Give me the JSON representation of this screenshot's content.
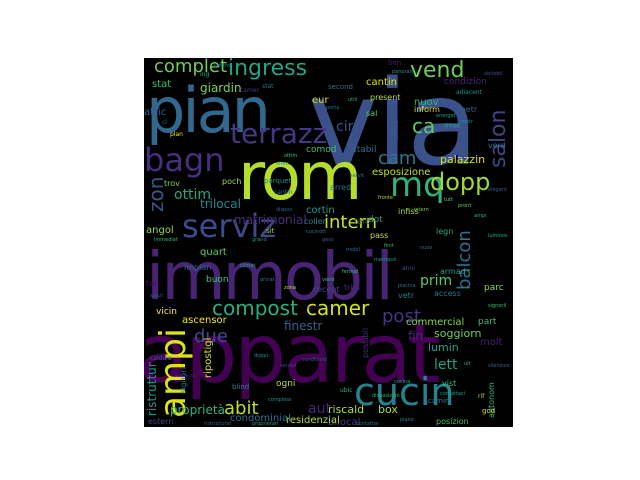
{
  "words": [
    {
      "text": "via",
      "color": "#3b518b"
    },
    {
      "text": "apparat",
      "color": "#440154"
    },
    {
      "text": "immobil",
      "color": "#482475"
    },
    {
      "text": "rom",
      "color": "#b5de2b"
    },
    {
      "text": "pian",
      "color": "#31688e"
    },
    {
      "text": "serviz",
      "color": "#3e4a89"
    },
    {
      "text": "cucin",
      "color": "#26828e"
    },
    {
      "text": "bagn",
      "color": "#472f7d"
    },
    {
      "text": "ampi",
      "color": "#dde318"
    },
    {
      "text": "mq",
      "color": "#2db27d"
    },
    {
      "text": "terrazz",
      "color": "#453882"
    },
    {
      "text": "vend",
      "color": "#6ece58"
    },
    {
      "text": "dopp",
      "color": "#9bd93c"
    },
    {
      "text": "ingress",
      "color": "#21a585"
    },
    {
      "text": "compost",
      "color": "#27ad81"
    },
    {
      "text": "camer",
      "color": "#d2e21b"
    },
    {
      "text": "complet",
      "color": "#6ece58"
    },
    {
      "text": "intern",
      "color": "#c8e020"
    },
    {
      "text": "salon",
      "color": "#414487"
    },
    {
      "text": "balcon",
      "color": "#2c728e"
    },
    {
      "text": "cam",
      "color": "#2a788e"
    },
    {
      "text": "ca",
      "color": "#5ec962"
    },
    {
      "text": "zon",
      "color": "#39568c"
    },
    {
      "text": "abit",
      "color": "#c0df25"
    },
    {
      "text": "due",
      "color": "#3e4c8a"
    },
    {
      "text": "post",
      "color": "#453781"
    },
    {
      "text": "prim",
      "color": "#5ec962"
    },
    {
      "text": "ottim",
      "color": "#22a884"
    },
    {
      "text": "aut",
      "color": "#482677"
    },
    {
      "text": "lett",
      "color": "#20a386"
    },
    {
      "text": "fin",
      "color": "#482878"
    },
    {
      "text": "ristruttur",
      "color": "#1f988b"
    },
    {
      "text": "proprietà",
      "color": "#31b57b"
    },
    {
      "text": "giardin",
      "color": "#7fd34e"
    },
    {
      "text": "circ",
      "color": "#3b528b"
    },
    {
      "text": "matrimonial",
      "color": "#472c7a"
    },
    {
      "text": "trilocal",
      "color": "#25858e"
    },
    {
      "text": "quart",
      "color": "#5ec962"
    },
    {
      "text": "soggiorn",
      "color": "#6ece58"
    },
    {
      "text": "finestr",
      "color": "#34608d"
    },
    {
      "text": "riscald",
      "color": "#b5de2b"
    },
    {
      "text": "box",
      "color": "#addc30"
    },
    {
      "text": "esposizione",
      "color": "#bddf26"
    },
    {
      "text": "palazzin",
      "color": "#d5e21a"
    },
    {
      "text": "bilocal",
      "color": "#443a83"
    },
    {
      "text": "cortin",
      "color": "#1e9b8a"
    },
    {
      "text": "residenzial",
      "color": "#b5de2b"
    },
    {
      "text": "condominial",
      "color": "#2e6f8e"
    },
    {
      "text": "eur",
      "color": "#d2e21b"
    },
    {
      "text": "nuov",
      "color": "#2fb47c"
    },
    {
      "text": "stat",
      "color": "#3dbc74"
    },
    {
      "text": "attic",
      "color": "#355f8d"
    },
    {
      "text": "comod",
      "color": "#44bf70"
    },
    {
      "text": "cantin",
      "color": "#dde318"
    },
    {
      "text": "angol",
      "color": "#a0da39"
    },
    {
      "text": "stabil",
      "color": "#2d708e"
    },
    {
      "text": "arred",
      "color": "#2c728e"
    },
    {
      "text": "commercial",
      "color": "#84d44b"
    },
    {
      "text": "part",
      "color": "#3dbc74"
    },
    {
      "text": "lumin",
      "color": "#1fa088"
    },
    {
      "text": "molt",
      "color": "#482173"
    },
    {
      "text": "ascensor",
      "color": "#f1e51d"
    },
    {
      "text": "ripostigl",
      "color": "#d8e219"
    },
    {
      "text": "buon",
      "color": "#4ac16d"
    },
    {
      "text": "impian",
      "color": "#31688e"
    },
    {
      "text": "vicin",
      "color": "#fde725"
    },
    {
      "text": "recent",
      "color": "#3f4788"
    },
    {
      "text": "tripl",
      "color": "#472a7a"
    },
    {
      "text": "vetr",
      "color": "#2a788e"
    },
    {
      "text": "armad",
      "color": "#1f9e89"
    },
    {
      "text": "access",
      "color": "#2b748e"
    },
    {
      "text": "parc",
      "color": "#89d548"
    },
    {
      "text": "autonom",
      "color": "#37b878"
    },
    {
      "text": "posizion",
      "color": "#4ac16d"
    },
    {
      "text": "vist",
      "color": "#3dbc74"
    },
    {
      "text": "ogni",
      "color": "#b5de2b"
    },
    {
      "text": "signori",
      "color": "#32648e"
    },
    {
      "text": "estern",
      "color": "#3f4889"
    },
    {
      "text": "dot",
      "color": "#1f988b"
    },
    {
      "text": "terc",
      "color": "#414487"
    },
    {
      "text": "coller",
      "color": "#26828e"
    },
    {
      "text": "possibil",
      "color": "#472d7b"
    },
    {
      "text": "legn",
      "color": "#25ab82"
    },
    {
      "text": "infiss",
      "color": "#addc30"
    },
    {
      "text": "pass",
      "color": "#cae11f"
    },
    {
      "text": "trov",
      "color": "#7fd34e"
    },
    {
      "text": "poch",
      "color": "#a0da39"
    },
    {
      "text": "parquet",
      "color": "#24868e"
    },
    {
      "text": "tel",
      "color": "#46075a"
    },
    {
      "text": "condizion",
      "color": "#482475"
    },
    {
      "text": "affac",
      "color": "#38588c"
    },
    {
      "text": "inform",
      "color": "#e5e419"
    },
    {
      "text": "present",
      "color": "#bade28"
    },
    {
      "text": "metr",
      "color": "#33638d"
    },
    {
      "text": "sal",
      "color": "#5ec962"
    },
    {
      "text": "verd",
      "color": "#2e6e8e"
    },
    {
      "text": "second",
      "color": "#2d708e"
    },
    {
      "text": "adiacent",
      "color": "#20928c"
    },
    {
      "text": "ben",
      "color": "#48186a"
    },
    {
      "text": "camin",
      "color": "#2a768e"
    },
    {
      "text": "god",
      "color": "#d0e11c"
    },
    {
      "text": "ubic",
      "color": "#31b57b"
    },
    {
      "text": "anni",
      "color": "#3a548c"
    },
    {
      "text": "plan",
      "color": "#f4e61e"
    },
    {
      "text": "blind",
      "color": "#24878e"
    },
    {
      "text": "sit",
      "color": "#90d743"
    },
    {
      "text": "caldaia",
      "color": "#34618d"
    },
    {
      "text": "cantin",
      "color": "#2c728e"
    },
    {
      "text": "cl",
      "color": "#31688e"
    },
    {
      "text": "ing",
      "color": "#31b57b"
    },
    {
      "text": "camer",
      "color": "#443983"
    },
    {
      "text": "stat",
      "color": "#2c728e"
    },
    {
      "text": "utili",
      "color": "#25ac82"
    },
    {
      "text": "contr",
      "color": "#21918c"
    },
    {
      "text": "alloggi",
      "color": "#22a884"
    },
    {
      "text": "porta",
      "color": "#2b758e"
    },
    {
      "text": "dispon",
      "color": "#34618d"
    },
    {
      "text": "tutt",
      "color": "#65cb5e"
    },
    {
      "text": "rif",
      "color": "#b5de2b"
    },
    {
      "text": "ult",
      "color": "#37b878"
    },
    {
      "text": "fronte",
      "color": "#a5db36"
    },
    {
      "text": "piscina",
      "color": "#2c738e"
    },
    {
      "text": "energet",
      "color": "#1f9a8a"
    },
    {
      "text": "zona",
      "color": "#b2dd2d"
    },
    {
      "text": "grand",
      "color": "#21918c"
    },
    {
      "text": "gess",
      "color": "#355f8d"
    },
    {
      "text": "ultim",
      "color": "#1fa188"
    },
    {
      "text": "servit",
      "color": "#2e6d8e"
    },
    {
      "text": "spazi",
      "color": "#3b528b"
    },
    {
      "text": "compless",
      "color": "#21918c"
    },
    {
      "text": "ottim",
      "color": "#4ac16d"
    },
    {
      "text": "pront",
      "color": "#6ccd5a"
    },
    {
      "text": "ampi",
      "color": "#27ad81"
    },
    {
      "text": "cucinott",
      "color": "#2d708e"
    },
    {
      "text": "vend",
      "color": "#3bbb75"
    },
    {
      "text": "fermat",
      "color": "#3aba76"
    },
    {
      "text": "metropol",
      "color": "#1f9a8a"
    },
    {
      "text": "mobil",
      "color": "#33638d"
    },
    {
      "text": "finit",
      "color": "#35b779"
    },
    {
      "text": "climat",
      "color": "#20a386"
    },
    {
      "text": "privat",
      "color": "#2a788e"
    },
    {
      "text": "accessor",
      "color": "#482576"
    },
    {
      "text": "doppi",
      "color": "#23898e"
    },
    {
      "text": "servizi",
      "color": "#3e4989"
    },
    {
      "text": "condizioni",
      "color": "#38588c"
    },
    {
      "text": "disposizion",
      "color": "#32b67a"
    },
    {
      "text": "contattaci",
      "color": "#1f9e89"
    },
    {
      "text": "cucina",
      "color": "#23a983"
    },
    {
      "text": "piano",
      "color": "#26828e"
    },
    {
      "text": "proprietari",
      "color": "#1e9b8a"
    },
    {
      "text": "ristrutturat",
      "color": "#355e8d"
    },
    {
      "text": "contattar",
      "color": "#2c728e"
    },
    {
      "text": "limitrof",
      "color": "#24868e"
    },
    {
      "text": "panoram",
      "color": "#1f948c"
    },
    {
      "text": "abitabil",
      "color": "#3e4a89"
    },
    {
      "text": "elegant",
      "color": "#38588c"
    },
    {
      "text": "luminos",
      "color": "#25ab82"
    },
    {
      "text": "signoril",
      "color": "#3dbc74"
    },
    {
      "text": "silenzios",
      "color": "#32648e"
    },
    {
      "text": "immediat",
      "color": "#2fb47c"
    },
    {
      "text": "accur",
      "color": "#471063"
    },
    {
      "text": "intern",
      "color": "#7ad151"
    },
    {
      "text": "nuov",
      "color": "#2c728e"
    }
  ]
}
